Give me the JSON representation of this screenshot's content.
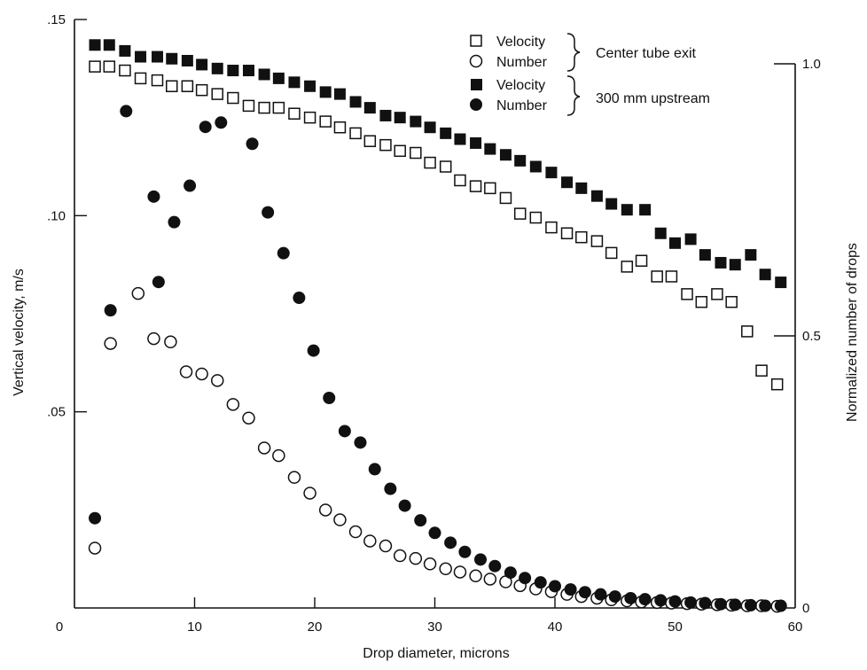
{
  "chart_data": {
    "type": "scatter",
    "title": "",
    "xlabel": "Drop diameter, microns",
    "ylabel": "Vertical velocity, m/s",
    "y2label": "Normalized number of drops",
    "xlim": [
      0,
      60
    ],
    "ylim": [
      0,
      0.15
    ],
    "y2lim": [
      0,
      1.0
    ],
    "x_ticks": [
      "0",
      "10",
      "20",
      "30",
      "40",
      "50",
      "60"
    ],
    "y_ticks": [
      ".05",
      ".10",
      ".15"
    ],
    "y2_ticks": [
      "0",
      "0.5",
      "1.0"
    ],
    "grid": false,
    "legend": {
      "placement": "top-right",
      "group1": "Center tube exit",
      "group2": "300 mm upstream"
    },
    "series": [
      {
        "name": "Velocity",
        "group": "Center tube exit",
        "axis": "left",
        "marker": "open-square",
        "x": [
          1.7,
          2.9,
          4.2,
          5.5,
          6.9,
          8.1,
          9.4,
          10.6,
          11.9,
          13.2,
          14.5,
          15.8,
          17.0,
          18.3,
          19.6,
          20.9,
          22.1,
          23.4,
          24.6,
          25.9,
          27.1,
          28.4,
          29.6,
          30.9,
          32.1,
          33.4,
          34.6,
          35.9,
          37.1,
          38.4,
          39.7,
          41.0,
          42.2,
          43.5,
          44.7,
          46.0,
          47.2,
          48.5,
          49.7,
          51.0,
          52.2,
          53.5,
          54.7,
          56.0,
          57.2,
          58.5
        ],
        "y": [
          0.138,
          0.138,
          0.137,
          0.135,
          0.1345,
          0.133,
          0.133,
          0.132,
          0.131,
          0.13,
          0.128,
          0.1275,
          0.1275,
          0.126,
          0.125,
          0.124,
          0.1225,
          0.121,
          0.119,
          0.118,
          0.1165,
          0.116,
          0.1135,
          0.1125,
          0.109,
          0.1075,
          0.107,
          0.1045,
          0.1005,
          0.0995,
          0.097,
          0.0955,
          0.0945,
          0.0935,
          0.0905,
          0.087,
          0.0885,
          0.0845,
          0.0845,
          0.08,
          0.078,
          0.08,
          0.078,
          0.0705,
          0.0605,
          0.057
        ]
      },
      {
        "name": "Number",
        "group": "Center tube exit",
        "axis": "right",
        "marker": "open-circle",
        "x": [
          1.7,
          3.0,
          5.3,
          6.6,
          8.0,
          9.3,
          10.6,
          11.9,
          13.2,
          14.5,
          15.8,
          17.0,
          18.3,
          19.6,
          20.9,
          22.1,
          23.4,
          24.6,
          25.9,
          27.1,
          28.4,
          29.6,
          30.9,
          32.1,
          33.4,
          34.6,
          35.9,
          37.1,
          38.4,
          39.7,
          41.0,
          42.2,
          43.5,
          44.7,
          46.0,
          47.2,
          48.5,
          49.7,
          51.0,
          52.2,
          53.5,
          54.7,
          56.0,
          57.2,
          58.5
        ],
        "y": [
          0.11,
          0.486,
          0.578,
          0.495,
          0.489,
          0.434,
          0.43,
          0.418,
          0.374,
          0.349,
          0.294,
          0.28,
          0.24,
          0.211,
          0.18,
          0.162,
          0.14,
          0.123,
          0.114,
          0.096,
          0.091,
          0.081,
          0.072,
          0.066,
          0.059,
          0.053,
          0.048,
          0.041,
          0.035,
          0.03,
          0.025,
          0.021,
          0.018,
          0.015,
          0.013,
          0.011,
          0.01,
          0.009,
          0.008,
          0.007,
          0.006,
          0.005,
          0.004,
          0.004,
          0.003
        ]
      },
      {
        "name": "Velocity",
        "group": "300 mm upstream",
        "axis": "left",
        "marker": "filled-square",
        "x": [
          1.7,
          2.9,
          4.2,
          5.5,
          6.9,
          8.1,
          9.4,
          10.6,
          11.9,
          13.2,
          14.5,
          15.8,
          17.0,
          18.3,
          19.6,
          20.9,
          22.1,
          23.4,
          24.6,
          25.9,
          27.1,
          28.4,
          29.6,
          30.9,
          32.1,
          33.4,
          34.6,
          35.9,
          37.1,
          38.4,
          39.7,
          41.0,
          42.2,
          43.5,
          44.7,
          46.0,
          47.5,
          48.8,
          50.0,
          51.3,
          52.5,
          53.8,
          55.0,
          56.3,
          57.5,
          58.8
        ],
        "y": [
          0.1435,
          0.1435,
          0.142,
          0.1405,
          0.1405,
          0.14,
          0.1395,
          0.1385,
          0.1375,
          0.137,
          0.137,
          0.136,
          0.135,
          0.134,
          0.133,
          0.1315,
          0.131,
          0.129,
          0.1275,
          0.1255,
          0.125,
          0.124,
          0.1225,
          0.121,
          0.1195,
          0.1185,
          0.117,
          0.1155,
          0.114,
          0.1125,
          0.111,
          0.1085,
          0.107,
          0.105,
          0.103,
          0.1015,
          0.1015,
          0.0955,
          0.093,
          0.094,
          0.09,
          0.088,
          0.0875,
          0.09,
          0.085,
          0.083
        ]
      },
      {
        "name": "Number",
        "group": "300 mm upstream",
        "axis": "right",
        "marker": "filled-circle",
        "x": [
          1.7,
          3.0,
          4.3,
          6.6,
          7.0,
          8.3,
          9.6,
          10.9,
          12.2,
          14.8,
          16.1,
          17.4,
          18.7,
          19.9,
          21.2,
          22.5,
          23.8,
          25.0,
          26.3,
          27.5,
          28.8,
          30.0,
          31.3,
          32.5,
          33.8,
          35.0,
          36.3,
          37.5,
          38.8,
          40.0,
          41.3,
          42.5,
          43.8,
          45.0,
          46.3,
          47.5,
          48.8,
          50.0,
          51.3,
          52.5,
          53.8,
          55.0,
          56.3,
          57.5,
          58.8
        ],
        "y": [
          0.165,
          0.547,
          0.913,
          0.756,
          0.599,
          0.709,
          0.776,
          0.884,
          0.892,
          0.853,
          0.727,
          0.652,
          0.57,
          0.473,
          0.386,
          0.325,
          0.304,
          0.255,
          0.219,
          0.188,
          0.161,
          0.138,
          0.12,
          0.103,
          0.089,
          0.077,
          0.065,
          0.055,
          0.047,
          0.04,
          0.034,
          0.029,
          0.025,
          0.021,
          0.018,
          0.016,
          0.014,
          0.012,
          0.01,
          0.009,
          0.007,
          0.006,
          0.005,
          0.004,
          0.004
        ]
      }
    ]
  }
}
